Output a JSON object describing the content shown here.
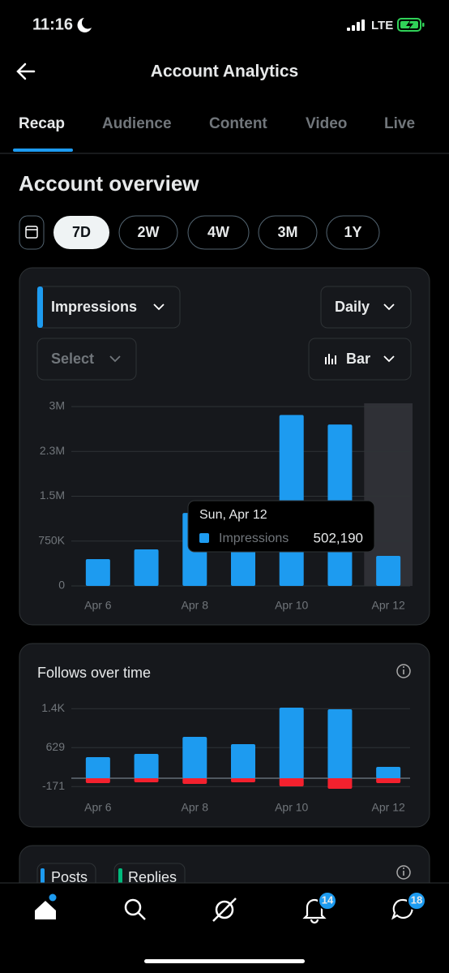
{
  "status_bar": {
    "time": "11:16",
    "network": "LTE"
  },
  "header": {
    "title": "Account Analytics"
  },
  "tabs": [
    "Recap",
    "Audience",
    "Content",
    "Video",
    "Live"
  ],
  "section_title": "Account overview",
  "ranges": [
    "7D",
    "2W",
    "4W",
    "3M",
    "1Y"
  ],
  "controls": {
    "metric": "Impressions",
    "interval": "Daily",
    "compare": "Select",
    "chart_type": "Bar"
  },
  "chart_data": [
    {
      "type": "bar",
      "categories": [
        "Apr 6",
        null,
        "Apr 8",
        null,
        "Apr 10",
        null,
        "Apr 12"
      ],
      "series": [
        {
          "name": "Impressions",
          "color": "#1d9bf0",
          "values": [
            448000,
            611000,
            1220000,
            700000,
            2860000,
            2700000,
            502190
          ]
        }
      ],
      "ylim": [
        0,
        3000000
      ],
      "yticks": [
        0,
        {
          "value": 750000,
          "label": "750K"
        },
        {
          "value": 1500000,
          "label": "1.5M"
        },
        {
          "value": 2250000,
          "label": "2.3M"
        },
        {
          "value": 3000000,
          "label": "3M"
        }
      ],
      "grid": true,
      "tooltip": {
        "title": "Sun, Apr 12",
        "value_label": "502,190"
      }
    },
    {
      "type": "bar",
      "title": "Follows over time",
      "categories": [
        "Apr 6",
        null,
        "Apr 8",
        null,
        "Apr 10",
        null,
        "Apr 12"
      ],
      "series": [
        {
          "color": "#1d9bf0",
          "values": [
            433,
            500,
            850,
            700,
            1450,
            1417,
            233
          ]
        },
        {
          "color": "#f4212e",
          "values": [
            -100,
            -83,
            -117,
            -83,
            -167,
            -217,
            -100
          ]
        }
      ],
      "ylim": [
        -250,
        1550
      ],
      "yticks": [
        -171,
        629,
        {
          "value": 1429,
          "label": "1.4K"
        }
      ],
      "grid": true
    }
  ],
  "next_card": {
    "chips": [
      "Posts",
      "Replies"
    ]
  },
  "nav_badges": [
    "14",
    "18"
  ]
}
